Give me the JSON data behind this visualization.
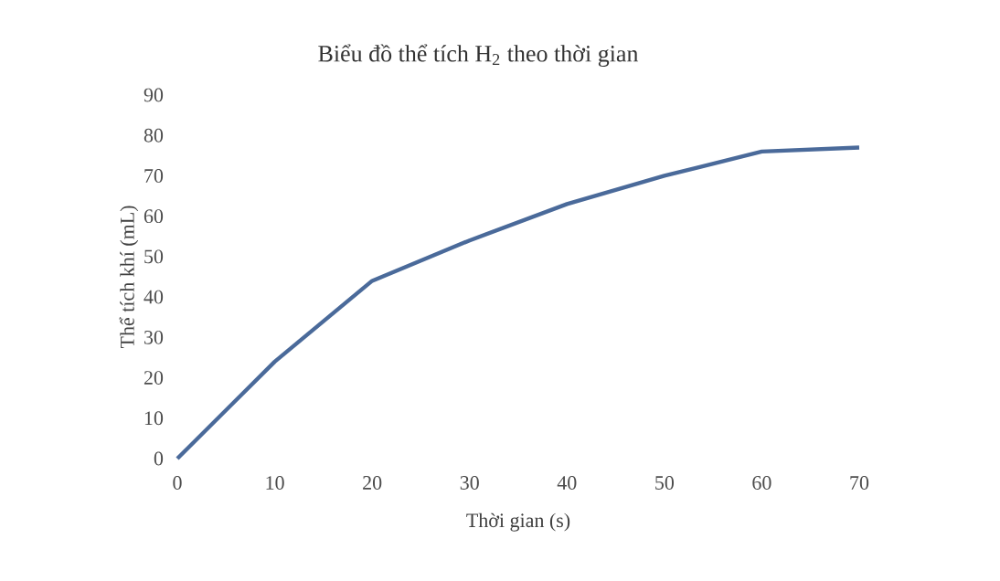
{
  "chart_data": {
    "type": "line",
    "title": "Biểu đồ thể tích H$_{2}$ theo thời gian",
    "xlabel": "Thời gian (s)",
    "ylabel": "Thể tích khí (mL)",
    "x": [
      0,
      10,
      20,
      30,
      40,
      50,
      60,
      70
    ],
    "series": [
      {
        "color": "#4a6a9a",
        "values": [
          0,
          24,
          44,
          54,
          63,
          70,
          76,
          77
        ]
      }
    ],
    "xlim": [
      0,
      70
    ],
    "xticks": [
      0,
      10,
      20,
      30,
      40,
      50,
      60,
      70
    ],
    "ylim": [
      0,
      90
    ],
    "yticks": [
      0,
      10,
      20,
      30,
      40,
      50,
      60,
      70,
      80,
      90
    ],
    "grid": false,
    "marker": "none",
    "line_style": "solid"
  }
}
